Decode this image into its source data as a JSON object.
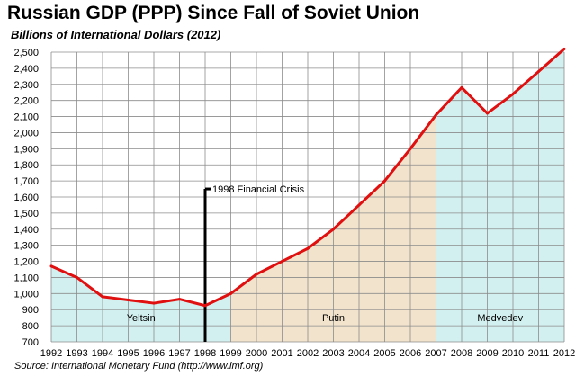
{
  "chart_data": {
    "type": "line",
    "title": "Russian GDP (PPP) Since Fall of Soviet Union",
    "subtitle": "Billions of International Dollars (2012)",
    "source": "Source: International Monetary Fund (http://www.imf.org)",
    "x": [
      1992,
      1993,
      1994,
      1995,
      1996,
      1997,
      1998,
      1999,
      2000,
      2001,
      2002,
      2003,
      2004,
      2005,
      2006,
      2007,
      2008,
      2009,
      2010,
      2011,
      2012
    ],
    "series": [
      {
        "values": [
          1170,
          1100,
          980,
          960,
          940,
          965,
          925,
          1000,
          1120,
          1200,
          1280,
          1400,
          1550,
          1700,
          1900,
          2110,
          2280,
          2120,
          2240,
          2380,
          2520
        ]
      }
    ],
    "ylim": [
      700,
      2500
    ],
    "yticks": [
      700,
      800,
      900,
      1000,
      1100,
      1200,
      1300,
      1400,
      1500,
      1600,
      1700,
      1800,
      1900,
      2000,
      2100,
      2200,
      2300,
      2400,
      2500
    ],
    "grid": true,
    "line_color": "#e01010",
    "eras": [
      {
        "label": "Yeltsin",
        "from": 1992,
        "to": 1999,
        "color": "#d3f0f0"
      },
      {
        "label": "Putin",
        "from": 1999,
        "to": 2007,
        "color": "#f2e3cc"
      },
      {
        "label": "Medvedev",
        "from": 2007,
        "to": 2012,
        "color": "#d3f0f0"
      }
    ],
    "annotation": {
      "label": "1998 Financial Crisis",
      "x": 1998,
      "y": 1650
    }
  }
}
